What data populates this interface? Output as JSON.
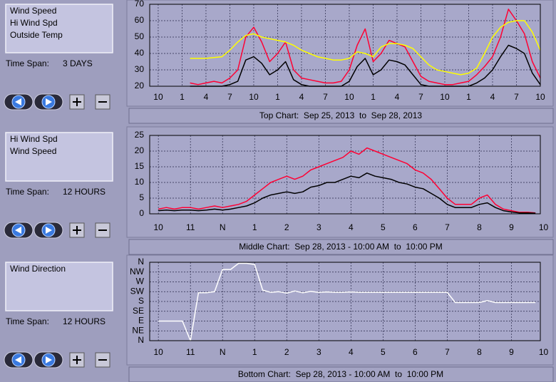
{
  "chart_data": [
    {
      "type": "line",
      "time_span_label": "Time Span:",
      "time_span": "3 DAYS",
      "caption": "Top Chart:  Sep 25, 2013  to  Sep 28, 2013",
      "x": [
        0,
        1,
        2,
        3,
        4,
        5,
        6,
        7,
        8,
        9,
        10,
        11,
        12,
        13,
        14,
        15,
        16,
        17,
        18,
        19,
        20,
        21,
        22,
        23,
        24,
        25,
        26,
        27,
        28,
        29,
        30,
        31,
        32,
        33,
        34,
        35,
        36,
        37,
        38,
        39,
        40,
        41,
        42,
        43,
        44,
        45,
        46,
        47,
        48
      ],
      "series": [
        {
          "name": "Wind Speed",
          "color": "#000000",
          "values": [
            null,
            null,
            null,
            null,
            20,
            20,
            20,
            20,
            20,
            21,
            23,
            36,
            38,
            34,
            27,
            30,
            35,
            24,
            21,
            20,
            20,
            20,
            20,
            20,
            23,
            32,
            37,
            27,
            30,
            36,
            35,
            33,
            27,
            21,
            20,
            20,
            20,
            20,
            20,
            20,
            22,
            25,
            30,
            38,
            45,
            43,
            40,
            28,
            21
          ]
        },
        {
          "name": "Hi Wind Spd",
          "color": "#ff0033",
          "values": [
            null,
            null,
            null,
            null,
            22,
            21,
            22,
            23,
            22,
            25,
            30,
            50,
            56,
            47,
            35,
            40,
            47,
            30,
            25,
            24,
            23,
            22,
            22,
            23,
            30,
            45,
            55,
            35,
            40,
            48,
            46,
            44,
            35,
            26,
            23,
            22,
            21,
            21,
            22,
            23,
            27,
            32,
            38,
            50,
            67,
            60,
            52,
            35,
            25
          ]
        },
        {
          "name": "Outside Temp",
          "color": "#ffff00",
          "values": [
            null,
            null,
            null,
            null,
            37,
            37,
            37,
            37.5,
            38,
            42,
            47,
            51,
            52,
            50,
            49,
            48,
            47,
            45,
            42,
            40,
            38,
            37,
            36,
            36,
            37,
            41,
            40,
            38,
            44,
            46,
            46,
            45,
            43,
            38,
            33,
            30,
            29,
            28,
            27,
            28,
            31,
            40,
            50,
            56,
            59,
            60,
            60,
            53,
            42
          ]
        }
      ],
      "draw_order": [
        1,
        0,
        2
      ],
      "xlim": [
        -1.07,
        48
      ],
      "xticks": [
        {
          "value": 0,
          "label": "10"
        },
        {
          "value": 3,
          "label": "1"
        },
        {
          "value": 6,
          "label": "4"
        },
        {
          "value": 9,
          "label": "7"
        },
        {
          "value": 12,
          "label": "10"
        },
        {
          "value": 15,
          "label": "1"
        },
        {
          "value": 18,
          "label": "4"
        },
        {
          "value": 21,
          "label": "7"
        },
        {
          "value": 24,
          "label": "10"
        },
        {
          "value": 27,
          "label": "1"
        },
        {
          "value": 30,
          "label": "4"
        },
        {
          "value": 33,
          "label": "7"
        },
        {
          "value": 36,
          "label": "10"
        },
        {
          "value": 39,
          "label": "1"
        },
        {
          "value": 42,
          "label": "4"
        },
        {
          "value": 45,
          "label": "7"
        },
        {
          "value": 48,
          "label": "10"
        }
      ],
      "ylim": [
        20,
        70
      ],
      "yticks": [
        20,
        30,
        40,
        50,
        60,
        70
      ],
      "grid": true
    },
    {
      "type": "line",
      "time_span_label": "Time Span:",
      "time_span": "12 HOURS",
      "caption": "Middle Chart:  Sep 28, 2013 - 10:00 AM  to  10:00 PM",
      "x": [
        0,
        0.25,
        0.5,
        0.75,
        1,
        1.25,
        1.5,
        1.75,
        2,
        2.25,
        2.5,
        2.75,
        3,
        3.25,
        3.5,
        3.75,
        4,
        4.25,
        4.5,
        4.75,
        5,
        5.25,
        5.5,
        5.75,
        6,
        6.25,
        6.5,
        6.75,
        7,
        7.25,
        7.5,
        7.75,
        8,
        8.25,
        8.5,
        8.75,
        9,
        9.25,
        9.5,
        9.75,
        10,
        10.25,
        10.5,
        10.75,
        11,
        11.25,
        11.5,
        11.75,
        12
      ],
      "series": [
        {
          "name": "Hi Wind Spd",
          "color": "#ff0033",
          "values": [
            1.5,
            2,
            1.5,
            2,
            2,
            1.5,
            2,
            2.5,
            2,
            2.5,
            3,
            4,
            6,
            8,
            10,
            11,
            12,
            11,
            12,
            14,
            15,
            16,
            17,
            18,
            20,
            19,
            21,
            20,
            19,
            18,
            17,
            16,
            14,
            13,
            11,
            8,
            5,
            3,
            3,
            3,
            5,
            6,
            3,
            1.5,
            1,
            0.5,
            0.5,
            0.3,
            null
          ]
        },
        {
          "name": "Wind Speed",
          "color": "#000000",
          "values": [
            1,
            1.2,
            1,
            1.2,
            1.2,
            1,
            1.2,
            1.5,
            1.2,
            1.5,
            2,
            2.5,
            3.5,
            5,
            6,
            6.5,
            7,
            6.5,
            7,
            8.5,
            9,
            10,
            10,
            11,
            12,
            11.5,
            13,
            12,
            11.5,
            11,
            10,
            9.5,
            8.5,
            8,
            6.5,
            5,
            3,
            2,
            2,
            2,
            3,
            3.5,
            2,
            1,
            0.6,
            0.3,
            0.3,
            0.2,
            null
          ]
        }
      ],
      "draw_order": [
        0,
        1
      ],
      "xlim": [
        -0.27,
        11.9
      ],
      "xticks": [
        {
          "value": 0,
          "label": "10"
        },
        {
          "value": 1,
          "label": "11"
        },
        {
          "value": 2,
          "label": "N"
        },
        {
          "value": 3,
          "label": "1"
        },
        {
          "value": 4,
          "label": "2"
        },
        {
          "value": 5,
          "label": "3"
        },
        {
          "value": 6,
          "label": "4"
        },
        {
          "value": 7,
          "label": "5"
        },
        {
          "value": 8,
          "label": "6"
        },
        {
          "value": 9,
          "label": "7"
        },
        {
          "value": 10,
          "label": "8"
        },
        {
          "value": 11,
          "label": "9"
        },
        {
          "value": 12,
          "label": "10"
        }
      ],
      "ylim": [
        0,
        25
      ],
      "yticks": [
        0,
        5,
        10,
        15,
        20,
        25
      ],
      "grid": true
    },
    {
      "type": "line",
      "time_span_label": "Time Span:",
      "time_span": "12 HOURS",
      "caption": "Bottom Chart:  Sep 28, 2013 - 10:00 AM  to  10:00 PM",
      "x": [
        0,
        0.25,
        0.5,
        0.75,
        1,
        1.25,
        1.5,
        1.75,
        2,
        2.25,
        2.5,
        2.75,
        3,
        3.25,
        3.5,
        3.75,
        4,
        4.25,
        4.5,
        4.75,
        5,
        5.25,
        5.5,
        5.75,
        6,
        6.25,
        6.5,
        6.75,
        7,
        7.25,
        7.5,
        7.75,
        8,
        8.25,
        8.5,
        8.75,
        9,
        9.25,
        9.5,
        9.75,
        10,
        10.25,
        10.5,
        10.75,
        11,
        11.25,
        11.5,
        11.75,
        12
      ],
      "series": [
        {
          "name": "Wind Direction",
          "color": "#ffffff",
          "values": [
            90,
            90,
            90,
            90,
            0,
            220,
            220,
            225,
            327,
            327,
            355,
            355,
            350,
            232,
            222,
            225,
            218,
            228,
            220,
            226,
            222,
            224,
            222,
            222,
            224,
            222,
            222,
            222,
            222,
            222,
            222,
            222,
            222,
            222,
            222,
            222,
            222,
            175,
            175,
            175,
            175,
            184,
            175,
            175,
            175,
            175,
            175,
            175,
            null
          ]
        }
      ],
      "draw_order": [
        0
      ],
      "xlim": [
        -0.27,
        11.9
      ],
      "xticks": [
        {
          "value": 0,
          "label": "10"
        },
        {
          "value": 1,
          "label": "11"
        },
        {
          "value": 2,
          "label": "N"
        },
        {
          "value": 3,
          "label": "1"
        },
        {
          "value": 4,
          "label": "2"
        },
        {
          "value": 5,
          "label": "3"
        },
        {
          "value": 6,
          "label": "4"
        },
        {
          "value": 7,
          "label": "5"
        },
        {
          "value": 8,
          "label": "6"
        },
        {
          "value": 9,
          "label": "7"
        },
        {
          "value": 10,
          "label": "8"
        },
        {
          "value": 11,
          "label": "9"
        },
        {
          "value": 12,
          "label": "10"
        }
      ],
      "ylim": [
        0,
        360
      ],
      "yticks": [
        {
          "value": 360,
          "label": "N"
        },
        {
          "value": 315,
          "label": "NW"
        },
        {
          "value": 270,
          "label": "W"
        },
        {
          "value": 225,
          "label": "SW"
        },
        {
          "value": 180,
          "label": "S"
        },
        {
          "value": 135,
          "label": "SE"
        },
        {
          "value": 90,
          "label": "E"
        },
        {
          "value": 45,
          "label": "NE"
        },
        {
          "value": 0,
          "label": "N"
        }
      ],
      "grid": true
    }
  ]
}
